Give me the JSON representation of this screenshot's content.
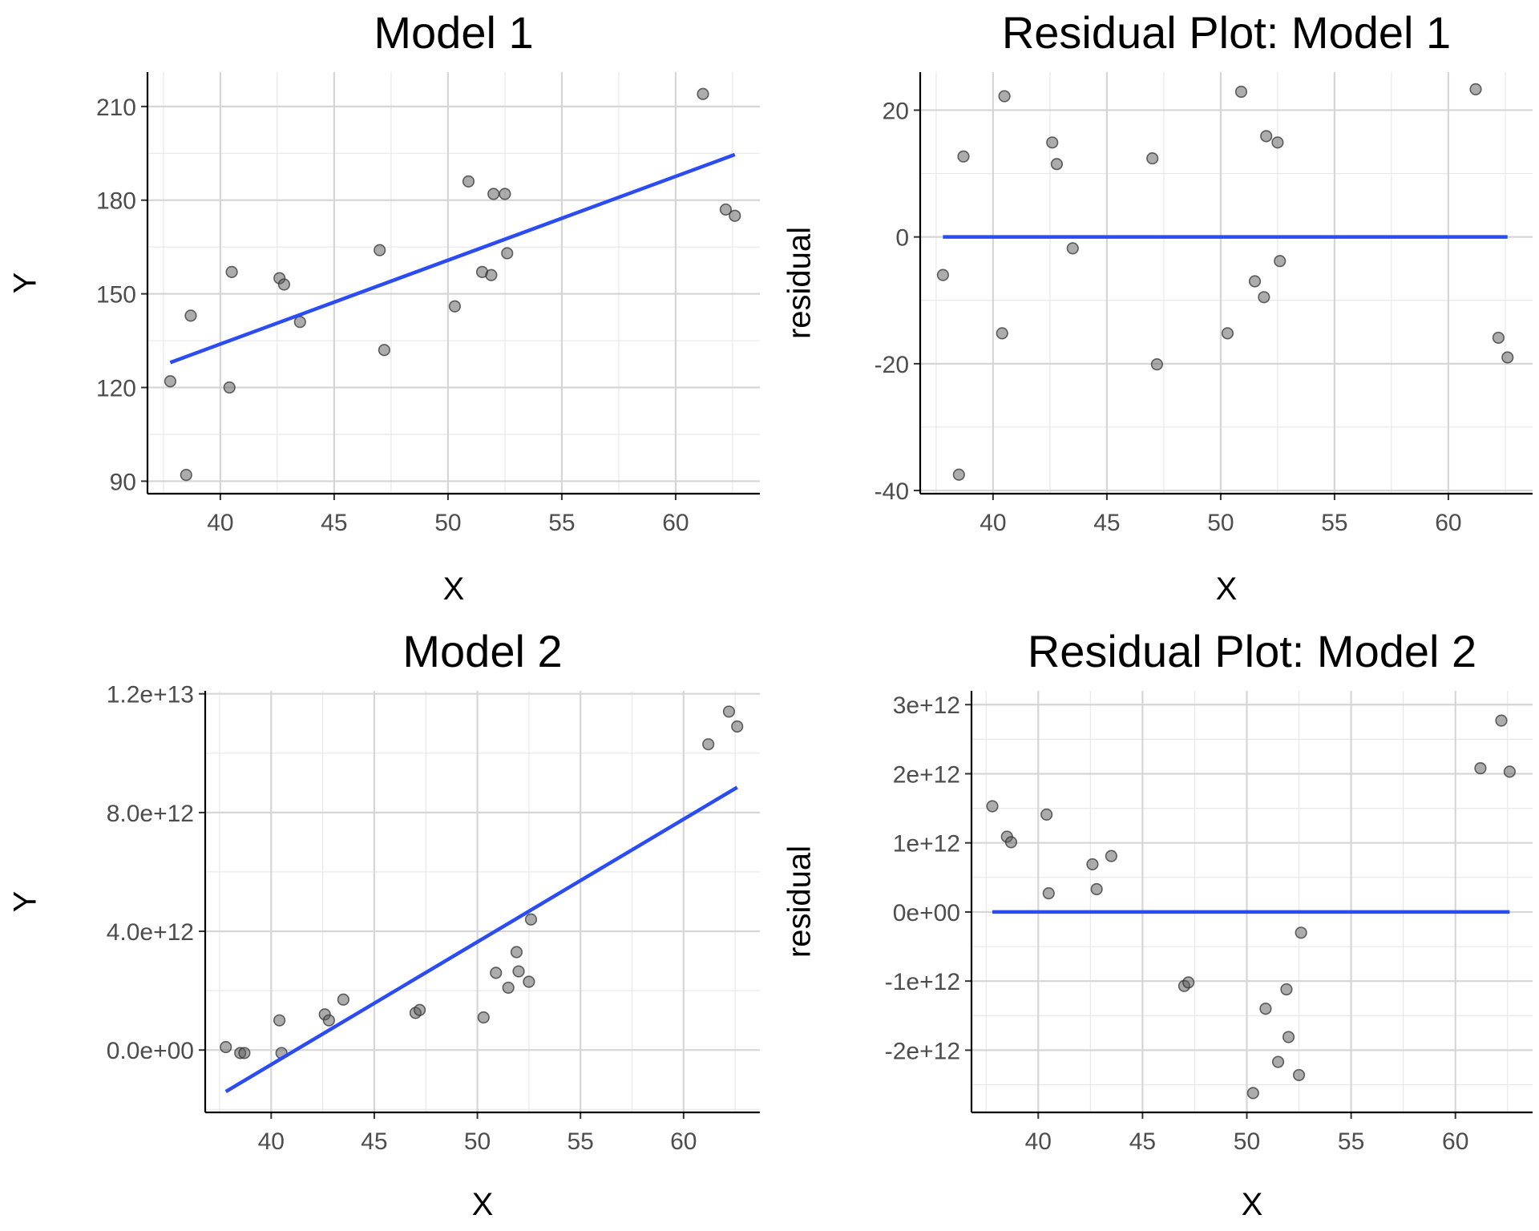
{
  "colors": {
    "point": "#595959",
    "fit": "#2b4cf2"
  },
  "chart_data": [
    {
      "type": "scatter",
      "title": "Model 1",
      "xlabel": "X",
      "ylabel": "Y",
      "xlim": [
        36.8,
        63.7
      ],
      "ylim": [
        86,
        221
      ],
      "xticks": [
        40,
        45,
        50,
        55,
        60
      ],
      "xtick_labels": [
        "40",
        "45",
        "50",
        "55",
        "60"
      ],
      "yticks": [
        90,
        120,
        150,
        180,
        210
      ],
      "ytick_labels": [
        "90",
        "120",
        "150",
        "180",
        "210"
      ],
      "points": {
        "x": [
          37.8,
          38.5,
          38.7,
          40.4,
          40.5,
          42.6,
          42.8,
          43.5,
          47.0,
          47.2,
          50.3,
          50.9,
          51.5,
          51.9,
          52.0,
          52.5,
          52.6,
          61.2,
          62.2,
          62.6
        ],
        "y": [
          122,
          92,
          143,
          120,
          157,
          155,
          153,
          141,
          164,
          132,
          146,
          186,
          157,
          156,
          182,
          182,
          163,
          214,
          177,
          175
        ]
      },
      "fit_line": {
        "x": [
          37.8,
          62.6
        ],
        "y": [
          128.0,
          194.6
        ]
      }
    },
    {
      "type": "scatter",
      "title": "Residual Plot: Model 1",
      "xlabel": "X",
      "ylabel": "residual",
      "xlim": [
        36.8,
        63.7
      ],
      "ylim": [
        -40.5,
        26
      ],
      "xticks": [
        40,
        45,
        50,
        55,
        60
      ],
      "xtick_labels": [
        "40",
        "45",
        "50",
        "55",
        "60"
      ],
      "yticks": [
        -40,
        -20,
        0,
        20
      ],
      "ytick_labels": [
        "-40",
        "-20",
        "0",
        "20"
      ],
      "points": {
        "x": [
          37.8,
          38.5,
          38.7,
          40.4,
          40.5,
          42.6,
          42.8,
          43.5,
          47.0,
          47.2,
          50.3,
          50.9,
          51.5,
          51.9,
          52.0,
          52.5,
          52.6,
          61.2,
          62.2,
          62.6
        ],
        "y": [
          -6.0,
          -37.5,
          12.7,
          -15.2,
          22.2,
          14.9,
          11.5,
          -1.8,
          12.4,
          -20.1,
          -15.2,
          22.9,
          -7.0,
          -9.5,
          15.9,
          14.9,
          -3.8,
          23.3,
          -15.9,
          -19.0
        ]
      },
      "fit_line": {
        "x": [
          37.8,
          62.6
        ],
        "y": [
          0,
          0
        ]
      }
    },
    {
      "type": "scatter",
      "title": "Model 2",
      "xlabel": "X",
      "ylabel": "Y",
      "xlim": [
        36.8,
        63.7
      ],
      "ylim": [
        -2100000000000.0,
        12100000000000.0
      ],
      "xticks": [
        40,
        45,
        50,
        55,
        60
      ],
      "xtick_labels": [
        "40",
        "45",
        "50",
        "55",
        "60"
      ],
      "yticks": [
        0,
        4000000000000.0,
        8000000000000.0,
        12000000000000.0
      ],
      "ytick_labels": [
        "0.0e+00",
        "4.0e+12",
        "8.0e+12",
        "1.2e+13"
      ],
      "points": {
        "x": [
          37.8,
          38.5,
          38.7,
          40.4,
          40.5,
          42.6,
          42.8,
          43.5,
          47.0,
          47.2,
          50.3,
          50.9,
          51.5,
          51.9,
          52.0,
          52.5,
          52.6,
          61.2,
          62.2,
          62.6
        ],
        "y": [
          100000000000.0,
          -100000000000.0,
          -100000000000.0,
          1000000000000.0,
          -100000000000.0,
          1200000000000.0,
          1000000000000.0,
          1700000000000.0,
          1250000000000.0,
          1350000000000.0,
          1100000000000.0,
          2600000000000.0,
          2100000000000.0,
          3300000000000.0,
          2650000000000.0,
          2300000000000.0,
          4400000000000.0,
          10300000000000.0,
          11400000000000.0,
          10900000000000.0
        ]
      },
      "fit_line": {
        "x": [
          37.8,
          62.6
        ],
        "y": [
          -1400000000000.0,
          8850000000000.0
        ]
      }
    },
    {
      "type": "scatter",
      "title": "Residual Plot: Model 2",
      "xlabel": "X",
      "ylabel": "residual",
      "xlim": [
        36.8,
        63.7
      ],
      "ylim": [
        -2900000000000.0,
        3200000000000.0
      ],
      "xticks": [
        40,
        45,
        50,
        55,
        60
      ],
      "xtick_labels": [
        "40",
        "45",
        "50",
        "55",
        "60"
      ],
      "yticks": [
        -2000000000000.0,
        -1000000000000.0,
        0,
        1000000000000.0,
        2000000000000.0,
        3000000000000.0
      ],
      "ytick_labels": [
        "-2e+12",
        "-1e+12",
        "0e+00",
        "1e+12",
        "2e+12",
        "3e+12"
      ],
      "points": {
        "x": [
          37.8,
          38.5,
          38.7,
          40.4,
          40.5,
          42.6,
          42.8,
          43.5,
          47.0,
          47.2,
          50.3,
          50.9,
          51.5,
          51.9,
          52.0,
          52.5,
          52.6,
          61.2,
          62.2,
          62.6
        ],
        "y": [
          1530000000000.0,
          1090000000000.0,
          1010000000000.0,
          1410000000000.0,
          270000000000.0,
          690000000000.0,
          330000000000.0,
          810000000000.0,
          -1070000000000.0,
          -1020000000000.0,
          -2620000000000.0,
          -1400000000000.0,
          -2170000000000.0,
          -1120000000000.0,
          -1810000000000.0,
          -2360000000000.0,
          -300000000000.0,
          2080000000000.0,
          2770000000000.0,
          2030000000000.0
        ]
      },
      "fit_line": {
        "x": [
          37.8,
          62.6
        ],
        "y": [
          0,
          0
        ]
      }
    }
  ]
}
